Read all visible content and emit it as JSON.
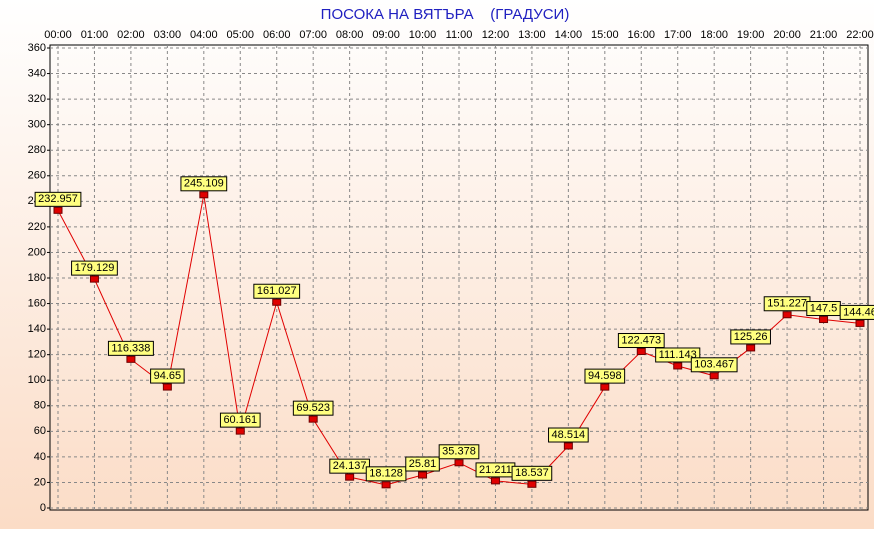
{
  "chart_data": {
    "type": "line",
    "title": "ПОСОКА НА ВЯТЪРА    (ГРАДУСИ)",
    "categories": [
      "00:00",
      "01:00",
      "02:00",
      "03:00",
      "04:00",
      "05:00",
      "06:00",
      "07:00",
      "08:00",
      "09:00",
      "10:00",
      "11:00",
      "12:00",
      "13:00",
      "14:00",
      "15:00",
      "16:00",
      "17:00",
      "18:00",
      "19:00",
      "20:00",
      "21:00",
      "22:00"
    ],
    "series": [
      {
        "color": "#e00000",
        "values": [
          232.957,
          179.129,
          116.338,
          94.65,
          245.109,
          60.161,
          161.027,
          69.523,
          24.137,
          18.128,
          25.81,
          35.378,
          21.211,
          18.537,
          48.514,
          94.598,
          122.473,
          111.143,
          103.467,
          125.26,
          151.227,
          147.5,
          144.46
        ]
      }
    ],
    "ylim": [
      0,
      360
    ],
    "yticks": [
      0,
      20,
      40,
      60,
      80,
      100,
      120,
      140,
      160,
      180,
      200,
      220,
      240,
      260,
      280,
      300,
      320,
      340,
      360
    ],
    "grid": true
  }
}
